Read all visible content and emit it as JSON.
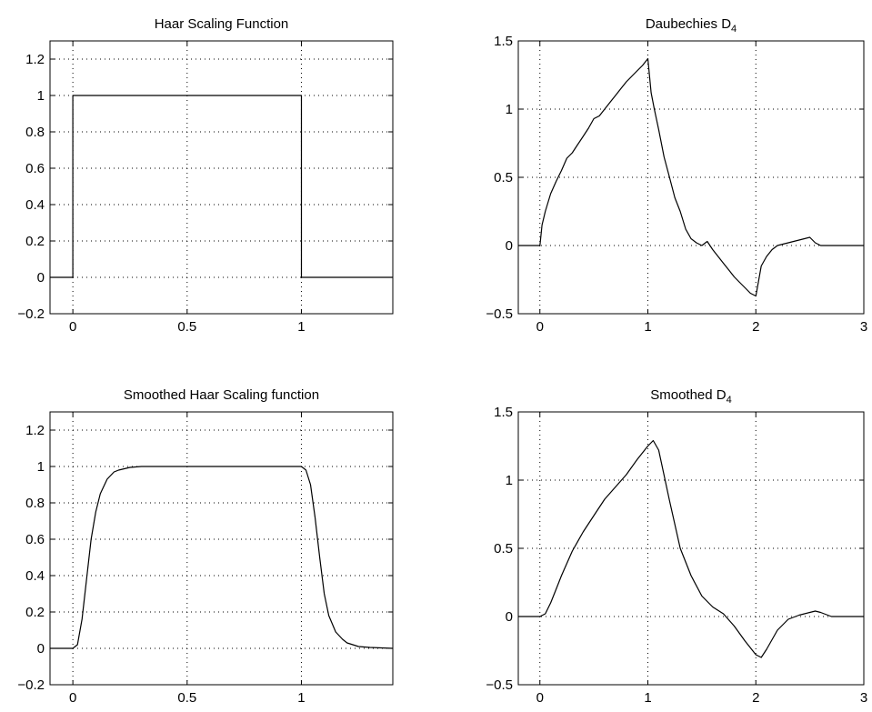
{
  "chart_data": [
    {
      "type": "line",
      "title": "Haar Scaling Function",
      "title_subscript": "",
      "xlim": [
        -0.1,
        1.4
      ],
      "ylim": [
        -0.2,
        1.3
      ],
      "xticks": [
        0,
        0.5,
        1
      ],
      "yticks": [
        -0.2,
        0,
        0.2,
        0.4,
        0.6,
        0.8,
        1,
        1.2
      ],
      "grid": true,
      "series": [
        {
          "x": [
            -0.1,
            0,
            0,
            1,
            1,
            1.4
          ],
          "y": [
            0,
            0,
            1,
            1,
            0,
            0
          ]
        }
      ]
    },
    {
      "type": "line",
      "title": "Daubechies D",
      "title_subscript": "4",
      "xlim": [
        -0.2,
        3
      ],
      "ylim": [
        -0.5,
        1.5
      ],
      "xticks": [
        0,
        1,
        2,
        3
      ],
      "yticks": [
        -0.5,
        0,
        0.5,
        1,
        1.5
      ],
      "grid": true,
      "series": [
        {
          "x": [
            -0.2,
            0,
            0.02,
            0.05,
            0.1,
            0.15,
            0.2,
            0.25,
            0.3,
            0.35,
            0.4,
            0.45,
            0.5,
            0.55,
            0.6,
            0.65,
            0.7,
            0.75,
            0.8,
            0.85,
            0.9,
            0.95,
            1.0,
            1.03,
            1.06,
            1.1,
            1.15,
            1.2,
            1.25,
            1.3,
            1.35,
            1.4,
            1.45,
            1.5,
            1.55,
            1.6,
            1.65,
            1.7,
            1.75,
            1.8,
            1.85,
            1.9,
            1.95,
            2.0,
            2.05,
            2.1,
            2.15,
            2.2,
            2.25,
            2.3,
            2.35,
            2.4,
            2.45,
            2.5,
            2.55,
            2.6,
            2.7,
            2.8,
            3.0
          ],
          "y": [
            0,
            0,
            0.15,
            0.25,
            0.38,
            0.47,
            0.55,
            0.64,
            0.68,
            0.74,
            0.8,
            0.86,
            0.93,
            0.95,
            1.0,
            1.05,
            1.1,
            1.15,
            1.2,
            1.24,
            1.28,
            1.32,
            1.37,
            1.12,
            1.0,
            0.85,
            0.65,
            0.5,
            0.35,
            0.25,
            0.12,
            0.05,
            0.02,
            0.0,
            0.03,
            -0.03,
            -0.08,
            -0.13,
            -0.18,
            -0.23,
            -0.27,
            -0.31,
            -0.35,
            -0.37,
            -0.15,
            -0.08,
            -0.03,
            0.0,
            0.01,
            0.02,
            0.03,
            0.04,
            0.05,
            0.06,
            0.02,
            0.0,
            0.0,
            0.0,
            0.0
          ]
        }
      ]
    },
    {
      "type": "line",
      "title": "Smoothed Haar Scaling function",
      "title_subscript": "",
      "xlim": [
        -0.1,
        1.4
      ],
      "ylim": [
        -0.2,
        1.3
      ],
      "xticks": [
        0,
        0.5,
        1
      ],
      "yticks": [
        -0.2,
        0,
        0.2,
        0.4,
        0.6,
        0.8,
        1,
        1.2
      ],
      "grid": true,
      "series": [
        {
          "x": [
            -0.1,
            0.0,
            0.02,
            0.04,
            0.06,
            0.08,
            0.1,
            0.12,
            0.15,
            0.18,
            0.2,
            0.25,
            0.3,
            0.4,
            0.6,
            0.8,
            0.95,
            1.0,
            1.02,
            1.04,
            1.06,
            1.08,
            1.1,
            1.12,
            1.15,
            1.18,
            1.2,
            1.25,
            1.3,
            1.4
          ],
          "y": [
            0,
            0,
            0.02,
            0.16,
            0.38,
            0.6,
            0.75,
            0.85,
            0.93,
            0.97,
            0.98,
            0.995,
            1.0,
            1.0,
            1.0,
            1.0,
            1.0,
            1.0,
            0.98,
            0.9,
            0.72,
            0.5,
            0.3,
            0.18,
            0.09,
            0.05,
            0.03,
            0.01,
            0.005,
            0.0
          ]
        }
      ]
    },
    {
      "type": "line",
      "title": "Smoothed D",
      "title_subscript": "4",
      "xlim": [
        -0.2,
        3
      ],
      "ylim": [
        -0.5,
        1.5
      ],
      "xticks": [
        0,
        1,
        2,
        3
      ],
      "yticks": [
        -0.5,
        0,
        0.5,
        1,
        1.5
      ],
      "grid": true,
      "series": [
        {
          "x": [
            -0.2,
            0.0,
            0.05,
            0.1,
            0.15,
            0.2,
            0.3,
            0.4,
            0.5,
            0.6,
            0.7,
            0.8,
            0.9,
            1.0,
            1.05,
            1.1,
            1.2,
            1.3,
            1.4,
            1.5,
            1.6,
            1.7,
            1.8,
            1.9,
            2.0,
            2.05,
            2.1,
            2.2,
            2.3,
            2.4,
            2.5,
            2.55,
            2.6,
            2.7,
            2.8,
            3.0
          ],
          "y": [
            0,
            0,
            0.02,
            0.1,
            0.2,
            0.3,
            0.48,
            0.62,
            0.74,
            0.86,
            0.95,
            1.04,
            1.15,
            1.25,
            1.29,
            1.22,
            0.85,
            0.5,
            0.3,
            0.15,
            0.07,
            0.02,
            -0.07,
            -0.18,
            -0.28,
            -0.3,
            -0.24,
            -0.1,
            -0.02,
            0.01,
            0.03,
            0.04,
            0.03,
            0.0,
            0.0,
            0.0
          ]
        }
      ]
    }
  ]
}
